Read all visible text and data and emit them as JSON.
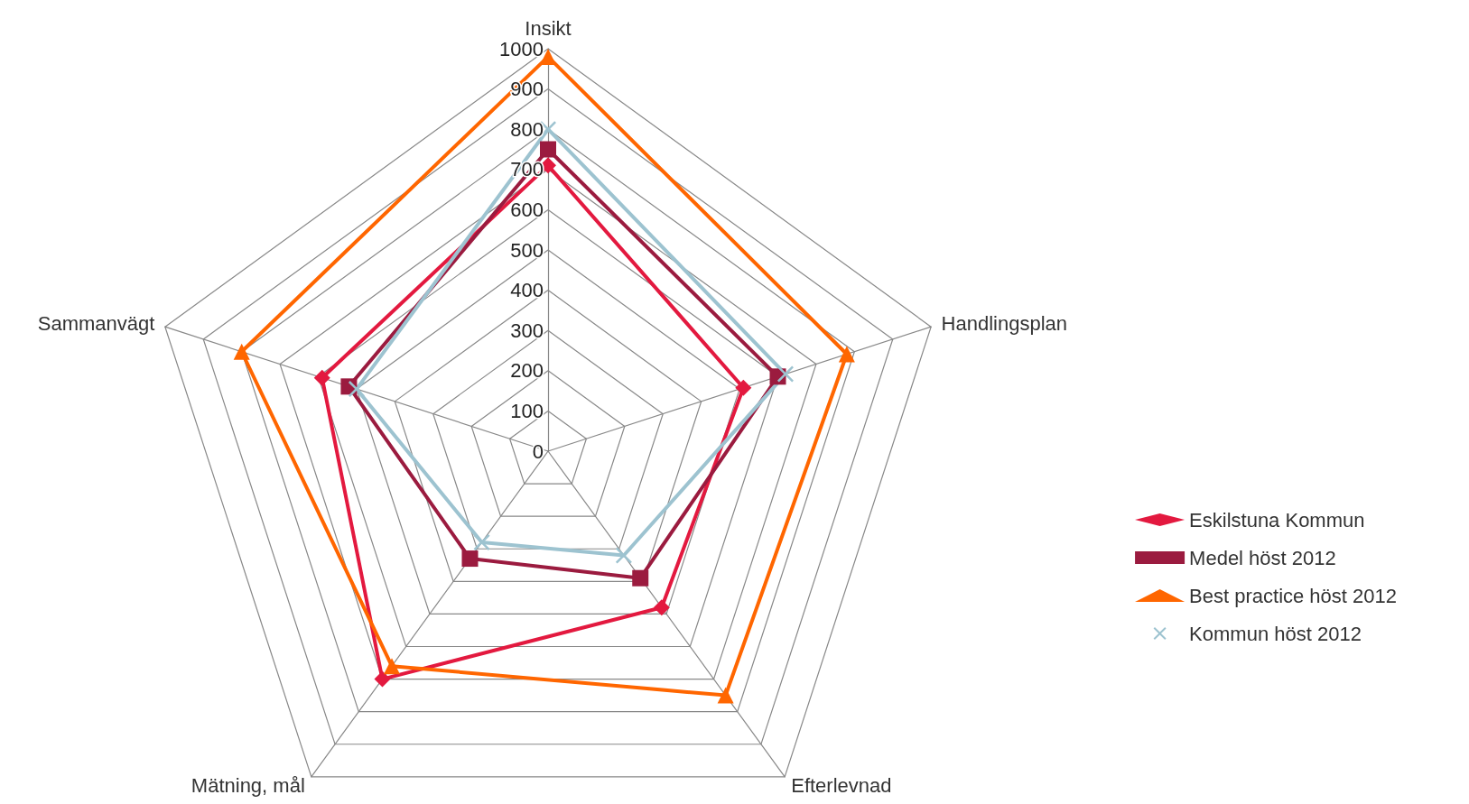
{
  "chart_data": {
    "type": "radar",
    "categories": [
      "Insikt",
      "Handlingsplan",
      "Efterlevnad",
      "Mätning, mål",
      "Sammanvägt"
    ],
    "ylim": [
      0,
      1000
    ],
    "yticks": [
      0,
      100,
      200,
      300,
      400,
      500,
      600,
      700,
      800,
      900,
      1000
    ],
    "grid": true,
    "legend": "right",
    "series": [
      {
        "name": "Eskilstuna Kommun",
        "color": "#e3193f",
        "marker": "diamond",
        "values": [
          710,
          510,
          480,
          700,
          590
        ]
      },
      {
        "name": "Medel höst 2012",
        "color": "#9b1b3f",
        "marker": "square",
        "values": [
          750,
          600,
          390,
          330,
          520
        ]
      },
      {
        "name": "Best practice höst 2012",
        "color": "#ff6600",
        "marker": "triangle",
        "values": [
          980,
          780,
          750,
          660,
          800
        ]
      },
      {
        "name": "Kommun höst 2012",
        "color": "#9dc3d0",
        "marker": "cross",
        "values": [
          800,
          620,
          320,
          280,
          500
        ]
      }
    ]
  }
}
